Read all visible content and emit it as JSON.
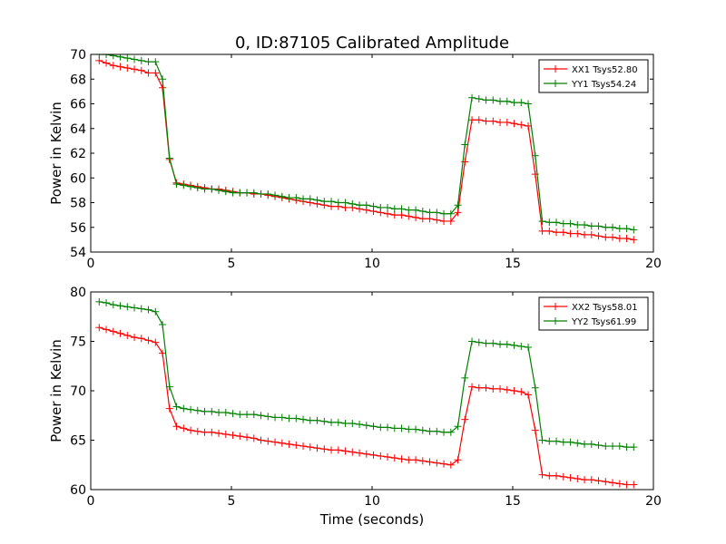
{
  "figure": {
    "title": "0, ID:87105 Calibrated Amplitude",
    "xlabel": "Time (seconds)"
  },
  "chart_data": [
    {
      "type": "line",
      "ylabel": "Power in Kelvin",
      "xlim": [
        0,
        20
      ],
      "ylim": [
        54,
        70
      ],
      "xticks": [
        "0",
        "5",
        "10",
        "15",
        "20"
      ],
      "yticks": [
        "54",
        "56",
        "58",
        "60",
        "62",
        "64",
        "66",
        "68",
        "70"
      ],
      "grid": false,
      "legend_position": "top-right",
      "series": [
        {
          "name": "XX1 Tsys52.80",
          "color": "#ff0000",
          "x": [
            0.3,
            0.55,
            0.8,
            1.05,
            1.3,
            1.55,
            1.8,
            2.05,
            2.3,
            2.55,
            2.8,
            3.05,
            3.3,
            3.55,
            3.8,
            4.05,
            4.3,
            4.55,
            4.8,
            5.05,
            5.3,
            5.55,
            5.8,
            6.05,
            6.3,
            6.55,
            6.8,
            7.05,
            7.3,
            7.55,
            7.8,
            8.05,
            8.3,
            8.55,
            8.8,
            9.05,
            9.3,
            9.55,
            9.8,
            10.05,
            10.3,
            10.55,
            10.8,
            11.05,
            11.3,
            11.55,
            11.8,
            12.05,
            12.3,
            12.55,
            12.8,
            13.05,
            13.3,
            13.55,
            13.8,
            14.05,
            14.3,
            14.55,
            14.8,
            15.05,
            15.3,
            15.55,
            15.8,
            16.05,
            16.3,
            16.55,
            16.8,
            17.05,
            17.3,
            17.55,
            17.8,
            18.05,
            18.3,
            18.55,
            18.8,
            19.05,
            19.3
          ],
          "y": [
            69.5,
            69.3,
            69.1,
            69.0,
            68.9,
            68.8,
            68.7,
            68.5,
            68.5,
            67.3,
            61.5,
            59.6,
            59.5,
            59.4,
            59.3,
            59.2,
            59.1,
            59.1,
            59.0,
            58.9,
            58.8,
            58.8,
            58.7,
            58.7,
            58.6,
            58.5,
            58.4,
            58.3,
            58.2,
            58.1,
            58.0,
            57.9,
            57.8,
            57.7,
            57.7,
            57.6,
            57.6,
            57.5,
            57.4,
            57.3,
            57.2,
            57.1,
            57.0,
            57.0,
            56.9,
            56.8,
            56.7,
            56.7,
            56.6,
            56.5,
            56.5,
            57.2,
            61.3,
            64.7,
            64.7,
            64.6,
            64.6,
            64.5,
            64.5,
            64.4,
            64.3,
            64.2,
            60.3,
            55.7,
            55.7,
            55.6,
            55.6,
            55.5,
            55.5,
            55.4,
            55.4,
            55.3,
            55.2,
            55.2,
            55.1,
            55.1,
            55.0
          ]
        },
        {
          "name": "YY1 Tsys54.24",
          "color": "#008000",
          "x": [
            0.3,
            0.55,
            0.8,
            1.05,
            1.3,
            1.55,
            1.8,
            2.05,
            2.3,
            2.55,
            2.8,
            3.05,
            3.3,
            3.55,
            3.8,
            4.05,
            4.3,
            4.55,
            4.8,
            5.05,
            5.3,
            5.55,
            5.8,
            6.05,
            6.3,
            6.55,
            6.8,
            7.05,
            7.3,
            7.55,
            7.8,
            8.05,
            8.3,
            8.55,
            8.8,
            9.05,
            9.3,
            9.55,
            9.8,
            10.05,
            10.3,
            10.55,
            10.8,
            11.05,
            11.3,
            11.55,
            11.8,
            12.05,
            12.3,
            12.55,
            12.8,
            13.05,
            13.3,
            13.55,
            13.8,
            14.05,
            14.3,
            14.55,
            14.8,
            15.05,
            15.3,
            15.55,
            15.8,
            16.05,
            16.3,
            16.55,
            16.8,
            17.05,
            17.3,
            17.55,
            17.8,
            18.05,
            18.3,
            18.55,
            18.8,
            19.05,
            19.3
          ],
          "y": [
            70.0,
            70.0,
            69.9,
            69.8,
            69.7,
            69.6,
            69.5,
            69.4,
            69.4,
            68.0,
            61.6,
            59.5,
            59.4,
            59.3,
            59.2,
            59.1,
            59.1,
            59.0,
            58.9,
            58.8,
            58.8,
            58.8,
            58.8,
            58.7,
            58.7,
            58.6,
            58.5,
            58.4,
            58.4,
            58.3,
            58.3,
            58.2,
            58.1,
            58.1,
            58.0,
            58.0,
            57.9,
            57.8,
            57.8,
            57.7,
            57.6,
            57.6,
            57.5,
            57.5,
            57.4,
            57.4,
            57.3,
            57.2,
            57.2,
            57.1,
            57.1,
            57.8,
            62.7,
            66.5,
            66.4,
            66.3,
            66.3,
            66.2,
            66.2,
            66.1,
            66.1,
            66.0,
            61.8,
            56.5,
            56.4,
            56.4,
            56.3,
            56.3,
            56.2,
            56.2,
            56.1,
            56.1,
            56.0,
            56.0,
            55.9,
            55.9,
            55.8
          ]
        }
      ]
    },
    {
      "type": "line",
      "ylabel": "Power in Kelvin",
      "xlim": [
        0,
        20
      ],
      "ylim": [
        60,
        80
      ],
      "xticks": [
        "0",
        "5",
        "10",
        "15",
        "20"
      ],
      "yticks": [
        "60",
        "65",
        "70",
        "75",
        "80"
      ],
      "grid": false,
      "legend_position": "top-right",
      "series": [
        {
          "name": "XX2 Tsys58.01",
          "color": "#ff0000",
          "x": [
            0.3,
            0.55,
            0.8,
            1.05,
            1.3,
            1.55,
            1.8,
            2.05,
            2.3,
            2.55,
            2.8,
            3.05,
            3.3,
            3.55,
            3.8,
            4.05,
            4.3,
            4.55,
            4.8,
            5.05,
            5.3,
            5.55,
            5.8,
            6.05,
            6.3,
            6.55,
            6.8,
            7.05,
            7.3,
            7.55,
            7.8,
            8.05,
            8.3,
            8.55,
            8.8,
            9.05,
            9.3,
            9.55,
            9.8,
            10.05,
            10.3,
            10.55,
            10.8,
            11.05,
            11.3,
            11.55,
            11.8,
            12.05,
            12.3,
            12.55,
            12.8,
            13.05,
            13.3,
            13.55,
            13.8,
            14.05,
            14.3,
            14.55,
            14.8,
            15.05,
            15.3,
            15.55,
            15.8,
            16.05,
            16.3,
            16.55,
            16.8,
            17.05,
            17.3,
            17.55,
            17.8,
            18.05,
            18.3,
            18.55,
            18.8,
            19.05,
            19.3
          ],
          "y": [
            76.4,
            76.2,
            76.0,
            75.8,
            75.6,
            75.4,
            75.3,
            75.1,
            74.9,
            73.8,
            68.2,
            66.4,
            66.2,
            66.0,
            65.9,
            65.8,
            65.8,
            65.7,
            65.6,
            65.5,
            65.4,
            65.3,
            65.2,
            65.0,
            64.9,
            64.8,
            64.7,
            64.6,
            64.5,
            64.4,
            64.3,
            64.2,
            64.1,
            64.0,
            64.0,
            63.9,
            63.8,
            63.7,
            63.6,
            63.5,
            63.4,
            63.3,
            63.2,
            63.1,
            63.0,
            63.0,
            62.9,
            62.8,
            62.7,
            62.6,
            62.5,
            63.0,
            67.1,
            70.4,
            70.3,
            70.3,
            70.2,
            70.2,
            70.1,
            70.0,
            69.9,
            69.6,
            66.0,
            61.5,
            61.4,
            61.4,
            61.3,
            61.2,
            61.1,
            61.0,
            61.0,
            60.9,
            60.8,
            60.7,
            60.6,
            60.5,
            60.5
          ]
        },
        {
          "name": "YY2 Tsys61.99",
          "color": "#008000",
          "x": [
            0.3,
            0.55,
            0.8,
            1.05,
            1.3,
            1.55,
            1.8,
            2.05,
            2.3,
            2.55,
            2.8,
            3.05,
            3.3,
            3.55,
            3.8,
            4.05,
            4.3,
            4.55,
            4.8,
            5.05,
            5.3,
            5.55,
            5.8,
            6.05,
            6.3,
            6.55,
            6.8,
            7.05,
            7.3,
            7.55,
            7.8,
            8.05,
            8.3,
            8.55,
            8.8,
            9.05,
            9.3,
            9.55,
            9.8,
            10.05,
            10.3,
            10.55,
            10.8,
            11.05,
            11.3,
            11.55,
            11.8,
            12.05,
            12.3,
            12.55,
            12.8,
            13.05,
            13.3,
            13.55,
            13.8,
            14.05,
            14.3,
            14.55,
            14.8,
            15.05,
            15.3,
            15.55,
            15.8,
            16.05,
            16.3,
            16.55,
            16.8,
            17.05,
            17.3,
            17.55,
            17.8,
            18.05,
            18.3,
            18.55,
            18.8,
            19.05,
            19.3
          ],
          "y": [
            79.0,
            78.9,
            78.7,
            78.6,
            78.5,
            78.4,
            78.3,
            78.2,
            78.0,
            76.7,
            70.4,
            68.4,
            68.2,
            68.1,
            68.0,
            67.9,
            67.9,
            67.8,
            67.8,
            67.7,
            67.6,
            67.6,
            67.6,
            67.5,
            67.4,
            67.3,
            67.3,
            67.2,
            67.2,
            67.1,
            67.0,
            67.0,
            66.9,
            66.8,
            66.8,
            66.7,
            66.7,
            66.6,
            66.5,
            66.4,
            66.3,
            66.3,
            66.2,
            66.2,
            66.1,
            66.1,
            66.0,
            65.9,
            65.9,
            65.8,
            65.8,
            66.4,
            71.3,
            75.0,
            74.9,
            74.8,
            74.8,
            74.7,
            74.7,
            74.6,
            74.5,
            74.4,
            70.3,
            65.0,
            64.9,
            64.9,
            64.8,
            64.8,
            64.7,
            64.6,
            64.6,
            64.5,
            64.4,
            64.4,
            64.4,
            64.3,
            64.3
          ]
        }
      ]
    }
  ]
}
